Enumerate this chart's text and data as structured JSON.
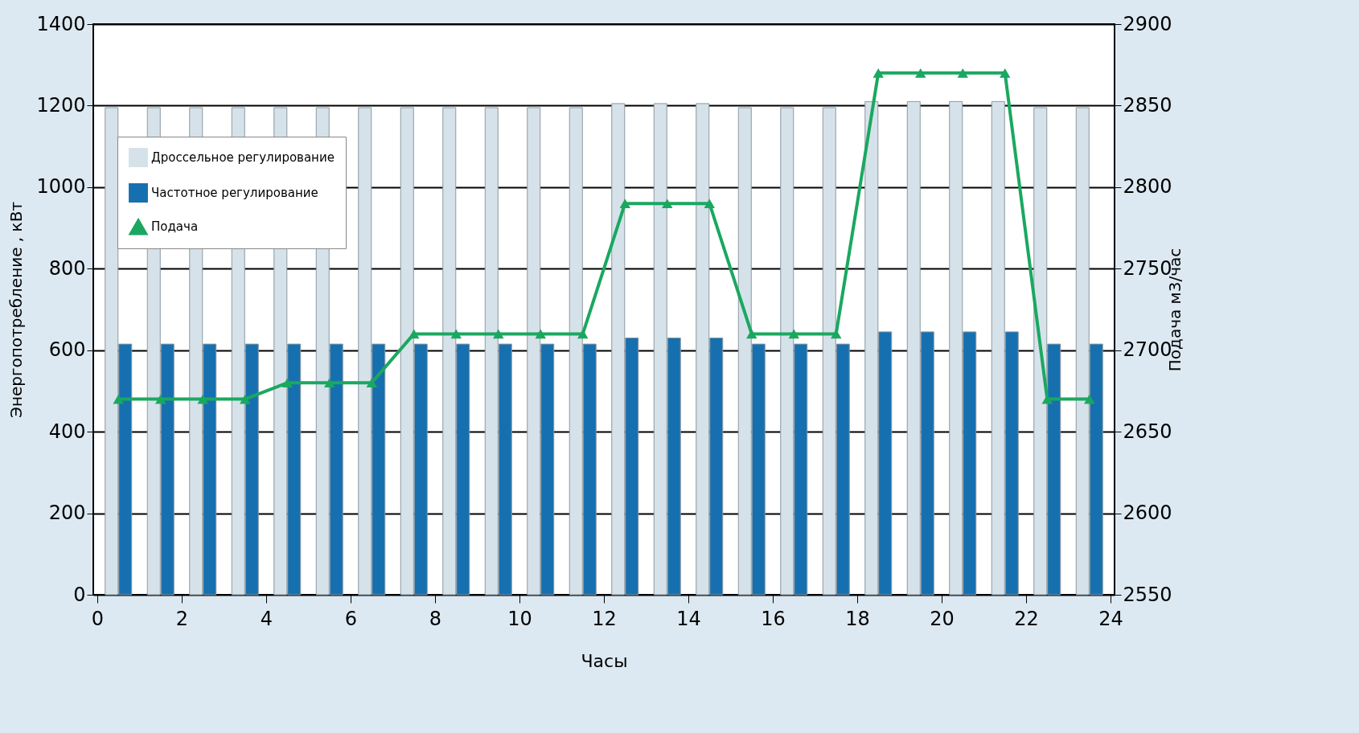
{
  "chart_data": {
    "type": "bar",
    "xlabel": "Часы",
    "ylabel": "Энергопотребление , кВт",
    "y2label": "Подача м3/час",
    "x": [
      0.5,
      1.5,
      2.5,
      3.5,
      4.5,
      5.5,
      6.5,
      7.5,
      8.5,
      9.5,
      10.5,
      11.5,
      12.5,
      13.5,
      14.5,
      15.5,
      16.5,
      17.5,
      18.5,
      19.5,
      20.5,
      21.5,
      22.5,
      23.5
    ],
    "series": [
      {
        "name": "Дроссельное регулирование",
        "color": "#d6e2ea",
        "values": [
          1195,
          1195,
          1195,
          1195,
          1195,
          1195,
          1195,
          1195,
          1195,
          1195,
          1195,
          1195,
          1205,
          1205,
          1205,
          1195,
          1195,
          1195,
          1210,
          1210,
          1210,
          1210,
          1195,
          1195
        ]
      },
      {
        "name": "Частотное регулирование",
        "color": "#1670b0",
        "values": [
          615,
          615,
          615,
          615,
          615,
          615,
          615,
          615,
          615,
          615,
          615,
          615,
          630,
          630,
          630,
          615,
          615,
          615,
          645,
          645,
          645,
          645,
          615,
          615
        ]
      },
      {
        "name": "Подача",
        "type": "line",
        "axis": "y2",
        "color": "#1aa860",
        "marker": "triangle",
        "values": [
          2670,
          2670,
          2670,
          2670,
          2680,
          2680,
          2680,
          2710,
          2710,
          2710,
          2710,
          2710,
          2790,
          2790,
          2790,
          2710,
          2710,
          2710,
          2870,
          2870,
          2870,
          2870,
          2670,
          2670
        ]
      }
    ],
    "xlim": [
      0,
      24
    ],
    "xticks": [
      0,
      2,
      4,
      6,
      8,
      10,
      12,
      14,
      16,
      18,
      20,
      22,
      24
    ],
    "ylim": [
      0,
      1400
    ],
    "yticks": [
      0,
      200,
      400,
      600,
      800,
      1000,
      1200,
      1400
    ],
    "y2lim": [
      2550,
      2900
    ],
    "y2ticks": [
      2550,
      2600,
      2650,
      2700,
      2750,
      2800,
      2850,
      2900
    ],
    "grid": "y",
    "legend": "top left"
  }
}
